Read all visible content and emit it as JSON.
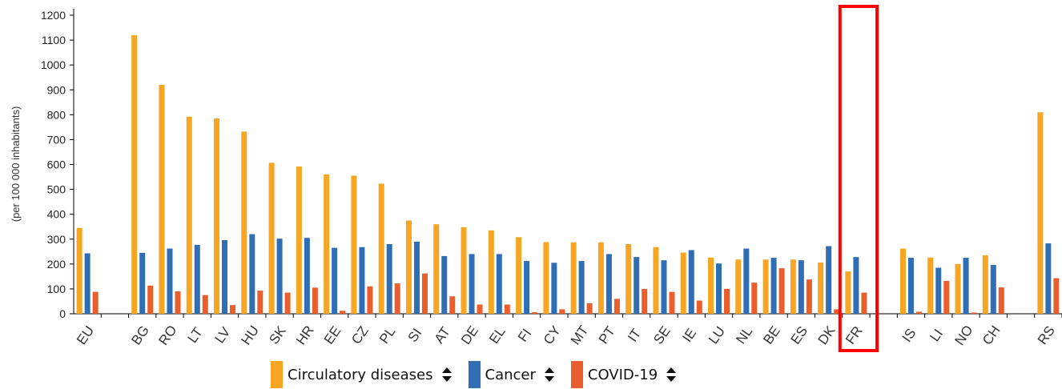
{
  "chart_data": {
    "type": "bar",
    "ylabel": "(per 100 000 inhabitants)",
    "ylim": [
      0,
      1200
    ],
    "yticks": [
      0,
      100,
      200,
      300,
      400,
      500,
      600,
      700,
      800,
      900,
      1000,
      1100,
      1200
    ],
    "categories": [
      "EU",
      "",
      "BG",
      "RO",
      "LT",
      "LV",
      "HU",
      "SK",
      "HR",
      "EE",
      "CZ",
      "PL",
      "SI",
      "AT",
      "DE",
      "EL",
      "FI",
      "CY",
      "MT",
      "PT",
      "IT",
      "SE",
      "IE",
      "LU",
      "NL",
      "BE",
      "ES",
      "DK",
      "FR",
      "",
      "IS",
      "LI",
      "NO",
      "CH",
      "",
      "RS"
    ],
    "series": [
      {
        "name": "Circulatory diseases",
        "color": "#f6a623",
        "values": [
          345,
          null,
          1120,
          920,
          792,
          785,
          732,
          607,
          592,
          560,
          555,
          523,
          375,
          360,
          348,
          335,
          308,
          288,
          287,
          287,
          280,
          268,
          246,
          226,
          218,
          218,
          218,
          206,
          170,
          null,
          262,
          226,
          200,
          235,
          null,
          810
        ]
      },
      {
        "name": "Cancer",
        "color": "#2f6db5",
        "values": [
          243,
          null,
          245,
          262,
          277,
          296,
          320,
          302,
          305,
          265,
          268,
          280,
          290,
          232,
          240,
          240,
          212,
          205,
          212,
          240,
          228,
          215,
          256,
          202,
          262,
          225,
          215,
          272,
          228,
          null,
          225,
          185,
          225,
          196,
          null,
          283
        ]
      },
      {
        "name": "COVID-19",
        "color": "#ea5d2c",
        "values": [
          88,
          null,
          113,
          90,
          75,
          35,
          93,
          85,
          105,
          12,
          110,
          122,
          162,
          70,
          37,
          37,
          6,
          18,
          42,
          60,
          100,
          88,
          53,
          100,
          125,
          183,
          138,
          18,
          85,
          null,
          8,
          132,
          5,
          106,
          null,
          143
        ]
      }
    ],
    "highlight": {
      "category": "FR",
      "color": "#ff0000"
    },
    "legend_position": "bottom"
  },
  "legend": {
    "items": [
      {
        "label": "Circulatory diseases",
        "color": "#f6a623"
      },
      {
        "label": "Cancer",
        "color": "#2f6db5"
      },
      {
        "label": "COVID-19",
        "color": "#ea5d2c"
      }
    ]
  }
}
